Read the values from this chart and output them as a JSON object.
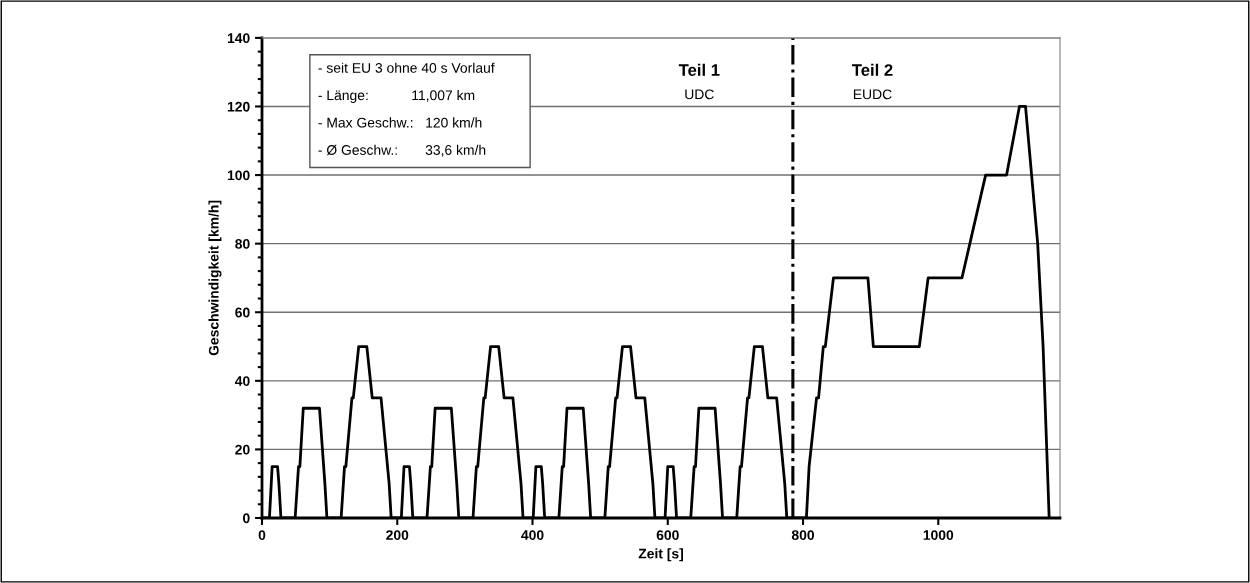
{
  "chart_data": {
    "type": "line",
    "xlabel": "Zeit [s]",
    "ylabel": "Geschwindigkeit [km/h]",
    "series": [
      {
        "color": "#000000",
        "x": [
          0,
          11,
          15,
          23,
          25,
          28,
          49,
          54,
          56,
          61,
          85,
          93,
          96,
          117,
          122,
          124,
          133,
          135,
          143,
          155,
          163,
          176,
          188,
          191,
          195,
          206,
          210,
          218,
          220,
          223,
          244,
          249,
          251,
          256,
          280,
          288,
          291,
          312,
          317,
          319,
          328,
          330,
          338,
          350,
          358,
          371,
          383,
          386,
          390,
          401,
          405,
          413,
          415,
          418,
          439,
          444,
          446,
          451,
          475,
          483,
          486,
          507,
          512,
          514,
          523,
          525,
          533,
          545,
          553,
          566,
          578,
          581,
          585,
          596,
          600,
          608,
          610,
          613,
          634,
          639,
          641,
          646,
          670,
          678,
          681,
          702,
          707,
          709,
          718,
          720,
          728,
          740,
          748,
          761,
          773,
          776,
          805,
          809,
          820,
          823,
          830,
          833,
          845,
          896,
          904,
          972,
          985,
          1035,
          1070,
          1101,
          1120,
          1129,
          1147,
          1155,
          1164
        ],
        "values": [
          0,
          0,
          15,
          15,
          10,
          0,
          0,
          15,
          15,
          32,
          32,
          10,
          0,
          0,
          15,
          15,
          35,
          35,
          50,
          50,
          35,
          35,
          10,
          0,
          0,
          0,
          15,
          15,
          10,
          0,
          0,
          15,
          15,
          32,
          32,
          10,
          0,
          0,
          15,
          15,
          35,
          35,
          50,
          50,
          35,
          35,
          10,
          0,
          0,
          0,
          15,
          15,
          10,
          0,
          0,
          15,
          15,
          32,
          32,
          10,
          0,
          0,
          15,
          15,
          35,
          35,
          50,
          50,
          35,
          35,
          10,
          0,
          0,
          0,
          15,
          15,
          10,
          0,
          0,
          15,
          15,
          32,
          32,
          10,
          0,
          0,
          15,
          15,
          35,
          35,
          50,
          50,
          35,
          35,
          10,
          0,
          0,
          15,
          35,
          35,
          50,
          50,
          70,
          70,
          50,
          50,
          70,
          70,
          100,
          100,
          120,
          120,
          80,
          50,
          0
        ]
      }
    ],
    "xlim": [
      0,
      1180
    ],
    "xticks": [
      0,
      200,
      400,
      600,
      800,
      1000
    ],
    "ylim": [
      0,
      140
    ],
    "yticks": [
      0,
      20,
      40,
      60,
      80,
      100,
      120,
      140
    ],
    "grid": "y",
    "marker": "none",
    "line_style": "solid",
    "legend": false,
    "ref_lines": [
      {
        "axis": "x",
        "value": 785,
        "color": "#000000",
        "line_style": "dashdot"
      }
    ],
    "annotations": [
      "- seit EU 3 ohne 40 s Vorlauf",
      "- Länge:           11,007 km",
      "- Max Geschw.:   120 km/h",
      "- Ø Geschw.:       33,6 km/h",
      "Teil 1",
      "UDC",
      "Teil 2",
      "EUDC"
    ]
  }
}
